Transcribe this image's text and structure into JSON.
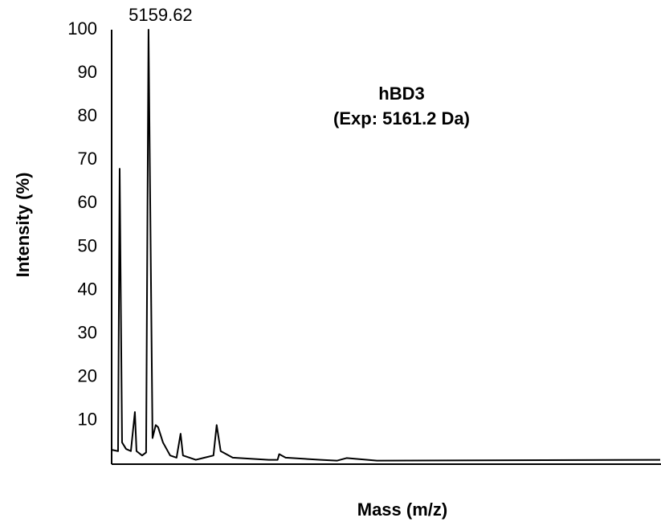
{
  "chart_data": {
    "type": "line",
    "annotations": [
      "hBD3",
      "(Exp: 5161.2 Da)"
    ],
    "peak_label": "5159.62",
    "x_label": "Mass (m/z)",
    "y_label": "Intensity (%)",
    "x": [
      1770,
      2360,
      2507,
      2728,
      3096,
      3539,
      3907,
      4055,
      4571,
      4939,
      5159.62,
      5528,
      5824,
      6045,
      6487,
      7150,
      7740,
      8108,
      8329,
      9509,
      11130,
      11425,
      11794,
      12899,
      16215,
      17026,
      17173,
      17763,
      21006,
      22480,
      23364,
      26165,
      52200
    ],
    "values": [
      3.3,
      3,
      68,
      5,
      3.5,
      3,
      12,
      3,
      2,
      2.7,
      100,
      6,
      9,
      8.5,
      5,
      2,
      1.5,
      7,
      2,
      1,
      2,
      9,
      3,
      1.5,
      1,
      1,
      2.3,
      1.5,
      1,
      0.8,
      1.4,
      0.8,
      1
    ],
    "color": "#000000",
    "xlim": [
      1770,
      52200
    ],
    "ylim": [
      0,
      100
    ],
    "yticks": [
      10,
      20,
      30,
      40,
      50,
      60,
      70,
      80,
      90,
      100
    ],
    "grid": false
  }
}
